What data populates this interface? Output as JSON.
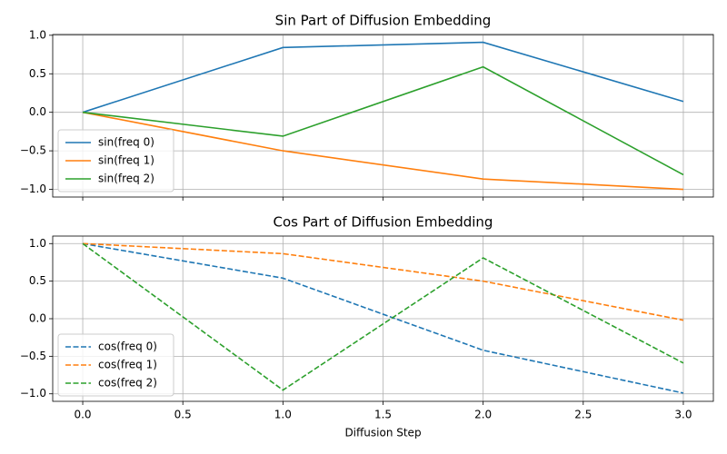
{
  "chart_data": [
    {
      "type": "line",
      "title": "Sin Part of Diffusion Embedding",
      "x": [
        0,
        1,
        2,
        3
      ],
      "series": [
        {
          "name": "sin(freq 0)",
          "color": "#1f77b4",
          "linestyle": "solid",
          "values": [
            0,
            0.841,
            0.909,
            0.141
          ]
        },
        {
          "name": "sin(freq 1)",
          "color": "#ff7f0e",
          "linestyle": "solid",
          "values": [
            0,
            -0.5,
            -0.866,
            -1.0
          ]
        },
        {
          "name": "sin(freq 2)",
          "color": "#2ca02c",
          "linestyle": "solid",
          "values": [
            0,
            -0.31,
            0.59,
            -0.81
          ]
        }
      ],
      "xlim": [
        -0.15,
        3.15
      ],
      "xticks": [
        0,
        0.5,
        1,
        1.5,
        2,
        2.5,
        3
      ],
      "ylim": [
        -1.1,
        1.01
      ],
      "yticks": [
        {
          "value": -1,
          "label": "−1.0"
        },
        {
          "value": -0.5,
          "label": "−0.5"
        },
        {
          "value": 0,
          "label": "0.0"
        },
        {
          "value": 0.5,
          "label": "0.5"
        },
        {
          "value": 1,
          "label": "1.0"
        }
      ],
      "grid": true,
      "legend": "lower left"
    },
    {
      "type": "line",
      "title": "Cos Part of Diffusion Embedding",
      "xlabel": "Diffusion Step",
      "x": [
        0,
        1,
        2,
        3
      ],
      "series": [
        {
          "name": "cos(freq 0)",
          "color": "#1f77b4",
          "linestyle": "dashed",
          "values": [
            1.0,
            0.54,
            -0.42,
            -0.99
          ]
        },
        {
          "name": "cos(freq 1)",
          "color": "#ff7f0e",
          "linestyle": "dashed",
          "values": [
            1.0,
            0.866,
            0.5,
            -0.02
          ]
        },
        {
          "name": "cos(freq 2)",
          "color": "#2ca02c",
          "linestyle": "dashed",
          "values": [
            1.0,
            -0.95,
            0.81,
            -0.59
          ]
        }
      ],
      "xlim": [
        -0.15,
        3.15
      ],
      "xticks": [
        {
          "value": 0,
          "label": "0.0"
        },
        {
          "value": 0.5,
          "label": "0.5"
        },
        {
          "value": 1,
          "label": "1.0"
        },
        {
          "value": 1.5,
          "label": "1.5"
        },
        {
          "value": 2,
          "label": "2.0"
        },
        {
          "value": 2.5,
          "label": "2.5"
        },
        {
          "value": 3,
          "label": "3.0"
        }
      ],
      "ylim": [
        -1.1,
        1.1
      ],
      "yticks": [
        {
          "value": -1,
          "label": "−1.0"
        },
        {
          "value": -0.5,
          "label": "−0.5"
        },
        {
          "value": 0,
          "label": "0.0"
        },
        {
          "value": 0.5,
          "label": "0.5"
        },
        {
          "value": 1,
          "label": "1.0"
        }
      ],
      "grid": true,
      "legend": "lower left"
    }
  ]
}
